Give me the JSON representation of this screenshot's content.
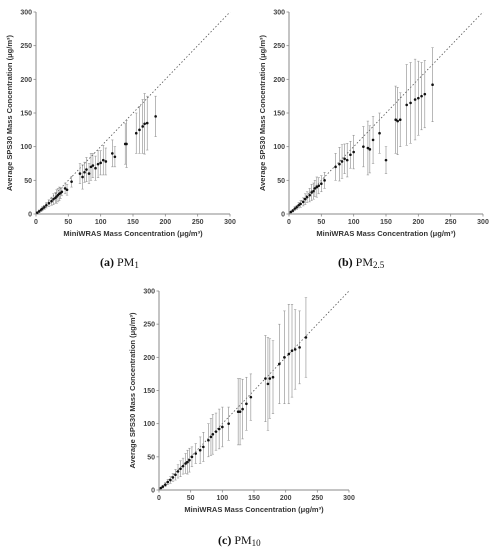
{
  "chart_data": [
    {
      "type": "scatter",
      "xlabel": "MiniWRAS Mass Concentration (μg/m³)",
      "ylabel": "Average SPS30 Mass Concentration (μg/m³)",
      "xlim": [
        0,
        300
      ],
      "ylim": [
        0,
        300
      ],
      "xticks": [
        "0",
        "50",
        "100",
        "150",
        "200",
        "250",
        "300"
      ],
      "yticks": [
        "0",
        "50",
        "100",
        "150",
        "200",
        "250",
        "300"
      ],
      "grid": false,
      "reference_line": "1:1 dotted",
      "caption_letter": "(a)",
      "caption_text": "PM",
      "caption_sub": "1",
      "points": [
        {
          "x": 2,
          "y": 2,
          "err": 1
        },
        {
          "x": 5,
          "y": 4,
          "err": 2
        },
        {
          "x": 8,
          "y": 6,
          "err": 2
        },
        {
          "x": 10,
          "y": 8,
          "err": 3
        },
        {
          "x": 13,
          "y": 10,
          "err": 3
        },
        {
          "x": 16,
          "y": 13,
          "err": 4
        },
        {
          "x": 20,
          "y": 16,
          "err": 5
        },
        {
          "x": 24,
          "y": 19,
          "err": 6
        },
        {
          "x": 27,
          "y": 22,
          "err": 8
        },
        {
          "x": 30,
          "y": 24,
          "err": 8
        },
        {
          "x": 32,
          "y": 26,
          "err": 10
        },
        {
          "x": 34,
          "y": 28,
          "err": 10
        },
        {
          "x": 36,
          "y": 30,
          "err": 10
        },
        {
          "x": 38,
          "y": 31,
          "err": 8
        },
        {
          "x": 40,
          "y": 33,
          "err": 6
        },
        {
          "x": 45,
          "y": 38,
          "err": 8
        },
        {
          "x": 48,
          "y": 36,
          "err": 8
        },
        {
          "x": 55,
          "y": 48,
          "err": 8
        },
        {
          "x": 68,
          "y": 60,
          "err": 15
        },
        {
          "x": 72,
          "y": 55,
          "err": 18
        },
        {
          "x": 75,
          "y": 62,
          "err": 15
        },
        {
          "x": 78,
          "y": 66,
          "err": 18
        },
        {
          "x": 82,
          "y": 60,
          "err": 15
        },
        {
          "x": 85,
          "y": 70,
          "err": 20
        },
        {
          "x": 88,
          "y": 72,
          "err": 18
        },
        {
          "x": 92,
          "y": 68,
          "err": 18
        },
        {
          "x": 96,
          "y": 74,
          "err": 20
        },
        {
          "x": 100,
          "y": 76,
          "err": 18
        },
        {
          "x": 104,
          "y": 80,
          "err": 22
        },
        {
          "x": 108,
          "y": 78,
          "err": 20
        },
        {
          "x": 118,
          "y": 90,
          "err": 20
        },
        {
          "x": 122,
          "y": 85,
          "err": 15
        },
        {
          "x": 138,
          "y": 104,
          "err": 30
        },
        {
          "x": 140,
          "y": 104,
          "err": 35
        },
        {
          "x": 155,
          "y": 120,
          "err": 30
        },
        {
          "x": 160,
          "y": 125,
          "err": 35
        },
        {
          "x": 165,
          "y": 130,
          "err": 40
        },
        {
          "x": 168,
          "y": 134,
          "err": 45
        },
        {
          "x": 172,
          "y": 135,
          "err": 40
        },
        {
          "x": 185,
          "y": 145,
          "err": 30
        }
      ]
    },
    {
      "type": "scatter",
      "xlabel": "MiniWRAS Mass Concentration (μg/m³)",
      "ylabel": "Average SPS30 Mass Concentration (μg/m³)",
      "xlim": [
        0,
        300
      ],
      "ylim": [
        0,
        300
      ],
      "xticks": [
        "0",
        "50",
        "100",
        "150",
        "200",
        "250",
        "300"
      ],
      "yticks": [
        "0",
        "50",
        "100",
        "150",
        "200",
        "250",
        "300"
      ],
      "grid": false,
      "reference_line": "1:1 dotted",
      "caption_letter": "(b)",
      "caption_text": "PM",
      "caption_sub": "2.5",
      "points": [
        {
          "x": 3,
          "y": 3,
          "err": 1
        },
        {
          "x": 6,
          "y": 5,
          "err": 2
        },
        {
          "x": 9,
          "y": 8,
          "err": 3
        },
        {
          "x": 12,
          "y": 10,
          "err": 3
        },
        {
          "x": 15,
          "y": 13,
          "err": 4
        },
        {
          "x": 18,
          "y": 15,
          "err": 5
        },
        {
          "x": 22,
          "y": 18,
          "err": 6
        },
        {
          "x": 25,
          "y": 22,
          "err": 8
        },
        {
          "x": 28,
          "y": 25,
          "err": 8
        },
        {
          "x": 32,
          "y": 28,
          "err": 10
        },
        {
          "x": 35,
          "y": 32,
          "err": 12
        },
        {
          "x": 38,
          "y": 34,
          "err": 12
        },
        {
          "x": 40,
          "y": 38,
          "err": 12
        },
        {
          "x": 43,
          "y": 40,
          "err": 15
        },
        {
          "x": 46,
          "y": 42,
          "err": 12
        },
        {
          "x": 50,
          "y": 45,
          "err": 12
        },
        {
          "x": 55,
          "y": 50,
          "err": 12
        },
        {
          "x": 72,
          "y": 70,
          "err": 20
        },
        {
          "x": 78,
          "y": 74,
          "err": 25
        },
        {
          "x": 82,
          "y": 78,
          "err": 25
        },
        {
          "x": 86,
          "y": 82,
          "err": 22
        },
        {
          "x": 90,
          "y": 80,
          "err": 25
        },
        {
          "x": 95,
          "y": 88,
          "err": 20
        },
        {
          "x": 100,
          "y": 92,
          "err": 25
        },
        {
          "x": 115,
          "y": 100,
          "err": 30
        },
        {
          "x": 122,
          "y": 98,
          "err": 40
        },
        {
          "x": 125,
          "y": 96,
          "err": 35
        },
        {
          "x": 130,
          "y": 110,
          "err": 35
        },
        {
          "x": 140,
          "y": 120,
          "err": 30
        },
        {
          "x": 150,
          "y": 80,
          "err": 20
        },
        {
          "x": 165,
          "y": 140,
          "err": 50
        },
        {
          "x": 168,
          "y": 138,
          "err": 50
        },
        {
          "x": 172,
          "y": 140,
          "err": 40
        },
        {
          "x": 182,
          "y": 162,
          "err": 60
        },
        {
          "x": 188,
          "y": 165,
          "err": 60
        },
        {
          "x": 195,
          "y": 170,
          "err": 60
        },
        {
          "x": 200,
          "y": 172,
          "err": 55
        },
        {
          "x": 205,
          "y": 175,
          "err": 50
        },
        {
          "x": 210,
          "y": 178,
          "err": 50
        },
        {
          "x": 222,
          "y": 192,
          "err": 55
        }
      ]
    },
    {
      "type": "scatter",
      "xlabel": "MiniWRAS Mass Concentration (μg/m³)",
      "ylabel": "Average SPS30 Mass Concentration (μg/m³)",
      "xlim": [
        0,
        300
      ],
      "ylim": [
        0,
        300
      ],
      "xticks": [
        "0",
        "50",
        "100",
        "150",
        "200",
        "250",
        "300"
      ],
      "yticks": [
        "0",
        "50",
        "100",
        "150",
        "200",
        "250",
        "300"
      ],
      "grid": false,
      "reference_line": "1:1 dotted",
      "caption_letter": "(c)",
      "caption_text": "PM",
      "caption_sub": "10",
      "points": [
        {
          "x": 3,
          "y": 3,
          "err": 1
        },
        {
          "x": 6,
          "y": 5,
          "err": 2
        },
        {
          "x": 10,
          "y": 8,
          "err": 3
        },
        {
          "x": 14,
          "y": 12,
          "err": 4
        },
        {
          "x": 18,
          "y": 15,
          "err": 5
        },
        {
          "x": 22,
          "y": 19,
          "err": 6
        },
        {
          "x": 26,
          "y": 23,
          "err": 8
        },
        {
          "x": 30,
          "y": 28,
          "err": 10
        },
        {
          "x": 34,
          "y": 32,
          "err": 12
        },
        {
          "x": 38,
          "y": 36,
          "err": 12
        },
        {
          "x": 42,
          "y": 40,
          "err": 15
        },
        {
          "x": 45,
          "y": 42,
          "err": 18
        },
        {
          "x": 48,
          "y": 45,
          "err": 18
        },
        {
          "x": 52,
          "y": 50,
          "err": 15
        },
        {
          "x": 58,
          "y": 55,
          "err": 15
        },
        {
          "x": 65,
          "y": 60,
          "err": 20
        },
        {
          "x": 70,
          "y": 65,
          "err": 22
        },
        {
          "x": 78,
          "y": 75,
          "err": 25
        },
        {
          "x": 82,
          "y": 80,
          "err": 28
        },
        {
          "x": 85,
          "y": 84,
          "err": 30
        },
        {
          "x": 90,
          "y": 88,
          "err": 28
        },
        {
          "x": 95,
          "y": 92,
          "err": 30
        },
        {
          "x": 100,
          "y": 95,
          "err": 30
        },
        {
          "x": 110,
          "y": 100,
          "err": 25
        },
        {
          "x": 125,
          "y": 118,
          "err": 50
        },
        {
          "x": 128,
          "y": 118,
          "err": 50
        },
        {
          "x": 132,
          "y": 122,
          "err": 45
        },
        {
          "x": 138,
          "y": 130,
          "err": 40
        },
        {
          "x": 145,
          "y": 140,
          "err": 35
        },
        {
          "x": 168,
          "y": 168,
          "err": 65
        },
        {
          "x": 172,
          "y": 160,
          "err": 70
        },
        {
          "x": 175,
          "y": 168,
          "err": 60
        },
        {
          "x": 180,
          "y": 170,
          "err": 55
        },
        {
          "x": 190,
          "y": 190,
          "err": 60
        },
        {
          "x": 198,
          "y": 200,
          "err": 70
        },
        {
          "x": 205,
          "y": 205,
          "err": 75
        },
        {
          "x": 210,
          "y": 210,
          "err": 70
        },
        {
          "x": 215,
          "y": 212,
          "err": 60
        },
        {
          "x": 222,
          "y": 215,
          "err": 55
        },
        {
          "x": 232,
          "y": 230,
          "err": 60
        }
      ]
    }
  ]
}
